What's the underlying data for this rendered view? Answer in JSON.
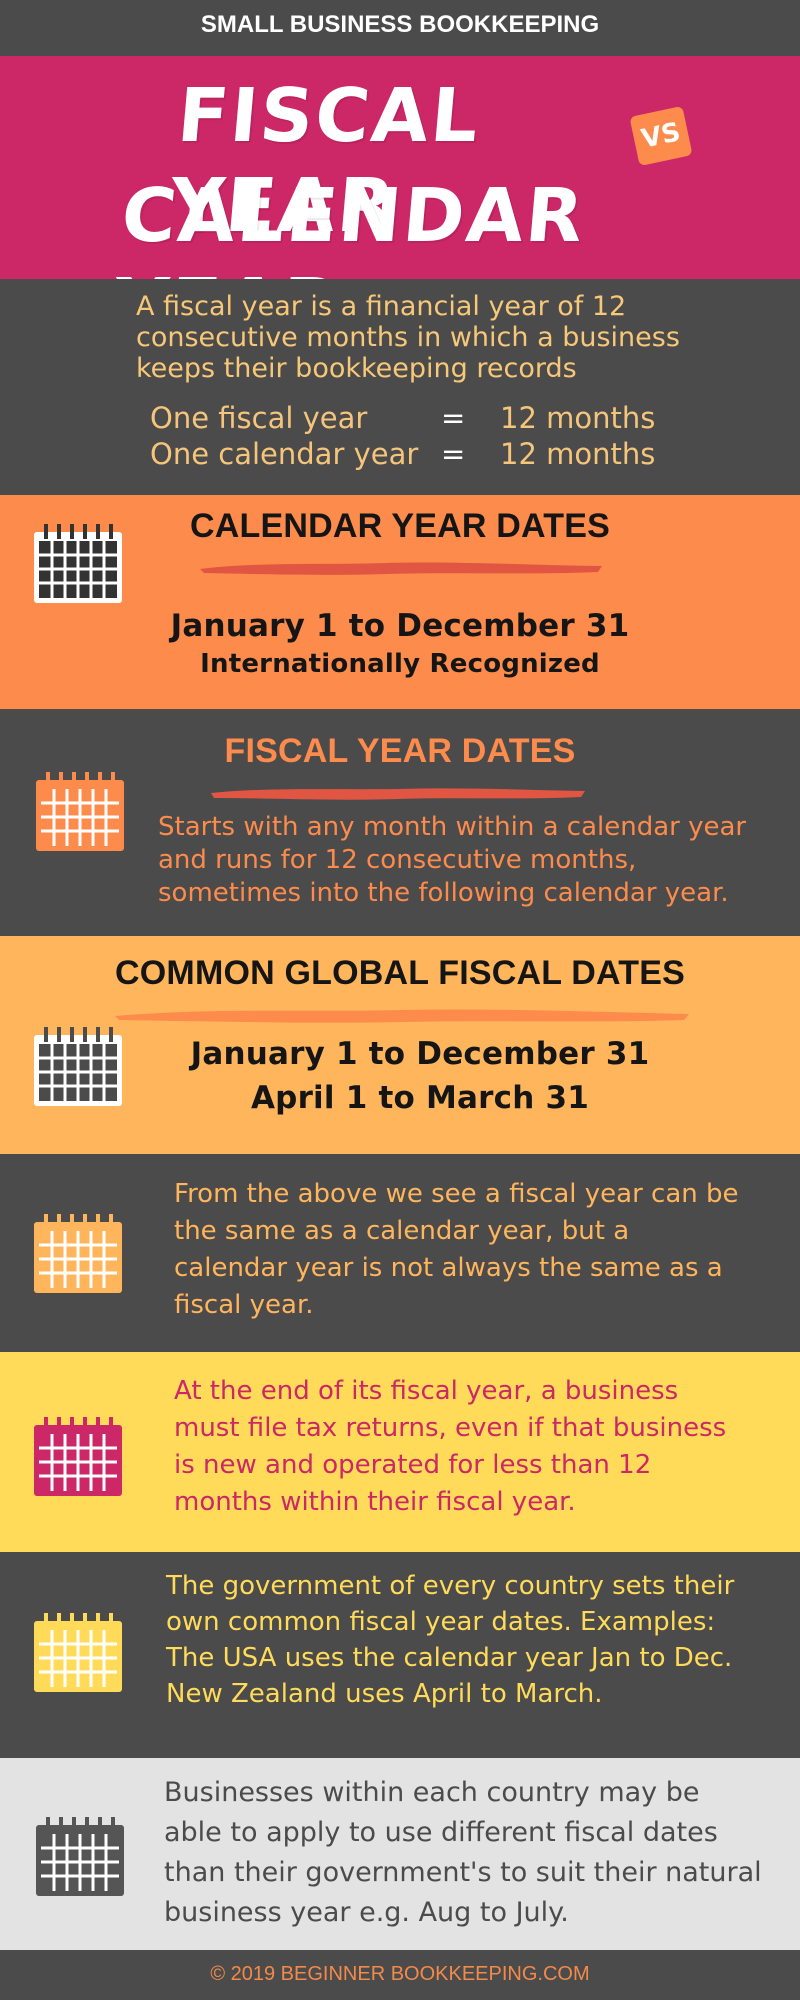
{
  "header": {
    "series_title": "SMALL BUSINESS BOOKKEEPING",
    "title_line1": "FISCAL YEAR",
    "vs_badge": "VS",
    "title_line2": "CALENDAR YEAR"
  },
  "intro": {
    "text": "A fiscal year is a financial year of 12 consecutive months in which a business keeps their bookkeeping records",
    "rows": [
      {
        "label": "One fiscal year",
        "equals": "=",
        "value": "12 months"
      },
      {
        "label": "One calendar year",
        "equals": "=",
        "value": "12 months"
      }
    ]
  },
  "calendar_year": {
    "heading": "CALENDAR YEAR DATES",
    "dates": "January 1 to December 31",
    "note": "Internationally Recognized"
  },
  "fiscal_year": {
    "heading": "FISCAL YEAR DATES",
    "text": "Starts with any month within a calendar year and runs for 12 consecutive months, sometimes into the following calendar year."
  },
  "common_dates": {
    "heading": "COMMON GLOBAL FISCAL DATES",
    "dates": [
      "January 1 to December 31",
      "April 1 to March 31"
    ]
  },
  "comparison": {
    "text": "From the above we see a fiscal year can be the same as a calendar year, but a calendar year is not always the same as a fiscal year."
  },
  "tax_returns": {
    "text": "At the end of its fiscal year, a business must file tax returns, even if that business is new and operated for less than 12 months within their fiscal year."
  },
  "government": {
    "text": "The government of every country sets their own common fiscal year dates.  Examples: The USA uses the calendar year Jan to Dec. New Zealand uses April to March."
  },
  "businesses": {
    "text": "Businesses within each country may be able to apply to use different fiscal dates than their government's to suit their natural business year e.g. Aug to July."
  },
  "footer": {
    "text": "© 2019  BEGINNER BOOKKEEPING.COM"
  },
  "colors": {
    "dark_gray": "#4b4b4b",
    "magenta": "#cc2766",
    "orange": "#fc8b4c",
    "light_orange": "#ffb55c",
    "yellow": "#ffdb59",
    "light_gray": "#e3e3e3",
    "peach_text": "#f7c878",
    "red_brush": "#e15642"
  },
  "icons": [
    "calendar-icon"
  ]
}
